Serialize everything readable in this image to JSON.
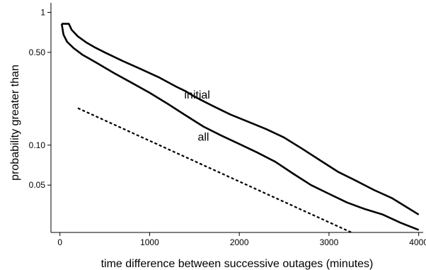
{
  "chart_data": {
    "type": "line",
    "xlabel": "time difference between successive outages (minutes)",
    "ylabel": "probability greater than",
    "x_scale": "linear",
    "y_scale": "log",
    "xlim": [
      -100,
      4050
    ],
    "ylim": [
      0.022,
      1.18
    ],
    "x_ticks": [
      {
        "value": 0,
        "label": "0"
      },
      {
        "value": 1000,
        "label": "1000"
      },
      {
        "value": 2000,
        "label": "2000"
      },
      {
        "value": 3000,
        "label": "3000"
      },
      {
        "value": 4000,
        "label": "4000"
      }
    ],
    "y_ticks": [
      {
        "value": 1,
        "label": "1"
      },
      {
        "value": 0.5,
        "label": "0.50"
      },
      {
        "value": 0.1,
        "label": "0.10"
      },
      {
        "value": 0.05,
        "label": "0.05"
      }
    ],
    "grid": false,
    "series": [
      {
        "name": "initial",
        "style": "solid",
        "color": "#000000",
        "points": [
          [
            20,
            0.82
          ],
          [
            100,
            0.82
          ],
          [
            130,
            0.74
          ],
          [
            200,
            0.66
          ],
          [
            300,
            0.59
          ],
          [
            400,
            0.54
          ],
          [
            500,
            0.5
          ],
          [
            700,
            0.43
          ],
          [
            900,
            0.375
          ],
          [
            1100,
            0.325
          ],
          [
            1300,
            0.275
          ],
          [
            1400,
            0.255
          ],
          [
            1500,
            0.232
          ],
          [
            1700,
            0.198
          ],
          [
            1900,
            0.17
          ],
          [
            2100,
            0.15
          ],
          [
            2300,
            0.132
          ],
          [
            2500,
            0.114
          ],
          [
            2700,
            0.094
          ],
          [
            2900,
            0.077
          ],
          [
            3100,
            0.063
          ],
          [
            3300,
            0.054
          ],
          [
            3500,
            0.046
          ],
          [
            3700,
            0.04
          ],
          [
            3900,
            0.033
          ],
          [
            4000,
            0.03
          ]
        ]
      },
      {
        "name": "all",
        "style": "solid",
        "color": "#000000",
        "points": [
          [
            20,
            0.82
          ],
          [
            40,
            0.68
          ],
          [
            80,
            0.6
          ],
          [
            150,
            0.54
          ],
          [
            250,
            0.48
          ],
          [
            400,
            0.42
          ],
          [
            600,
            0.35
          ],
          [
            800,
            0.295
          ],
          [
            1000,
            0.248
          ],
          [
            1200,
            0.205
          ],
          [
            1400,
            0.168
          ],
          [
            1600,
            0.138
          ],
          [
            1800,
            0.118
          ],
          [
            2000,
            0.102
          ],
          [
            2200,
            0.088
          ],
          [
            2400,
            0.075
          ],
          [
            2600,
            0.061
          ],
          [
            2800,
            0.05
          ],
          [
            3000,
            0.043
          ],
          [
            3200,
            0.037
          ],
          [
            3400,
            0.033
          ],
          [
            3600,
            0.03
          ],
          [
            3800,
            0.026
          ],
          [
            4000,
            0.023
          ]
        ]
      },
      {
        "name": "",
        "style": "dotted",
        "color": "#000000",
        "points": [
          [
            200,
            0.19
          ],
          [
            3250,
            0.022
          ]
        ]
      }
    ],
    "annotations": [
      {
        "text": "initial",
        "x": 1530,
        "y": 0.225
      },
      {
        "text": "all",
        "x": 1600,
        "y": 0.108
      }
    ]
  }
}
